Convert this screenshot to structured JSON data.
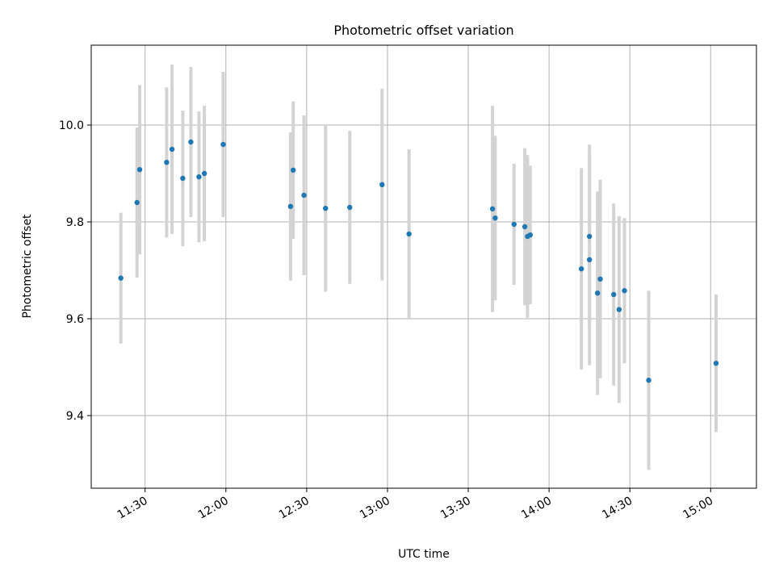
{
  "chart_data": {
    "type": "scatter",
    "title": "Photometric offset variation",
    "xlabel": "UTC time",
    "ylabel": "Photometric offset",
    "xlim": [
      "11:10",
      "15:17"
    ],
    "ylim": [
      9.25,
      10.165
    ],
    "grid": true,
    "x_ticks": [
      "11:30",
      "12:00",
      "12:30",
      "13:00",
      "13:30",
      "14:00",
      "14:30",
      "15:00"
    ],
    "y_ticks": [
      "9.4",
      "9.6",
      "9.8",
      "10.0"
    ],
    "colors": {
      "point": "#1f77b4",
      "error_bar": "#d3d3d3",
      "grid": "#b0b0b0"
    },
    "points": [
      {
        "x": "11:21",
        "y": 9.684,
        "err": 0.135
      },
      {
        "x": "11:27",
        "y": 9.84,
        "err": 0.155
      },
      {
        "x": "11:28",
        "y": 9.908,
        "err": 0.175
      },
      {
        "x": "11:38",
        "y": 9.923,
        "err": 0.155
      },
      {
        "x": "11:40",
        "y": 9.95,
        "err": 0.175
      },
      {
        "x": "11:44",
        "y": 9.89,
        "err": 0.14
      },
      {
        "x": "11:47",
        "y": 9.965,
        "err": 0.155
      },
      {
        "x": "11:50",
        "y": 9.893,
        "err": 0.135
      },
      {
        "x": "11:52",
        "y": 9.9,
        "err": 0.14
      },
      {
        "x": "11:59",
        "y": 9.96,
        "err": 0.15
      },
      {
        "x": "12:24",
        "y": 9.832,
        "err": 0.153
      },
      {
        "x": "12:25",
        "y": 9.907,
        "err": 0.142
      },
      {
        "x": "12:29",
        "y": 9.855,
        "err": 0.165
      },
      {
        "x": "12:37",
        "y": 9.828,
        "err": 0.172
      },
      {
        "x": "12:46",
        "y": 9.83,
        "err": 0.158
      },
      {
        "x": "12:58",
        "y": 9.877,
        "err": 0.198
      },
      {
        "x": "13:08",
        "y": 9.775,
        "err": 0.175
      },
      {
        "x": "13:39",
        "y": 9.827,
        "err": 0.213
      },
      {
        "x": "13:40",
        "y": 9.808,
        "err": 0.17
      },
      {
        "x": "13:47",
        "y": 9.795,
        "err": 0.125
      },
      {
        "x": "13:51",
        "y": 9.79,
        "err": 0.162
      },
      {
        "x": "13:52",
        "y": 9.77,
        "err": 0.168
      },
      {
        "x": "13:53",
        "y": 9.773,
        "err": 0.143
      },
      {
        "x": "14:12",
        "y": 9.703,
        "err": 0.208
      },
      {
        "x": "14:15",
        "y": 9.722,
        "err": 0.218
      },
      {
        "x": "14:15",
        "y": 9.77,
        "err": 0.19
      },
      {
        "x": "14:18",
        "y": 9.653,
        "err": 0.21
      },
      {
        "x": "14:19",
        "y": 9.682,
        "err": 0.205
      },
      {
        "x": "14:24",
        "y": 9.65,
        "err": 0.188
      },
      {
        "x": "14:26",
        "y": 9.619,
        "err": 0.193
      },
      {
        "x": "14:28",
        "y": 9.658,
        "err": 0.15
      },
      {
        "x": "14:37",
        "y": 9.473,
        "err": 0.185
      },
      {
        "x": "15:02",
        "y": 9.508,
        "err": 0.142
      }
    ]
  }
}
